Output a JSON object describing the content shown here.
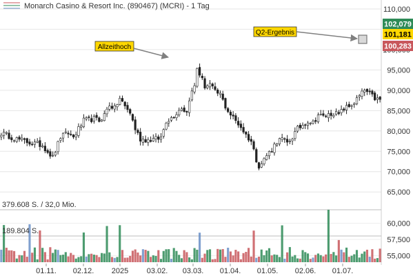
{
  "header": {
    "title": "Monarch Casino & Resort Inc. (890467) (MCRI) - 1 Tag"
  },
  "colors": {
    "up": "#2e8b57",
    "down": "#c8575c",
    "neutral": "#6a8fc7",
    "badge_high": "#2e8b57",
    "badge_mid": "#ffd700",
    "badge_low": "#c8575c",
    "annotation_bg": "#ffd700",
    "arrow": "#808080"
  },
  "chart_data": [
    {
      "type": "candlestick",
      "title": "Monarch Casino & Resort Inc. (890467) (MCRI) - 1 Tag",
      "ylim": [
        63000,
        110500
      ],
      "y_ticks": [
        65000,
        70000,
        75000,
        80000,
        85000,
        90000,
        95000,
        100000,
        105000,
        110000
      ],
      "y_tick_labels": [
        "65,000",
        "70,000",
        "75,000",
        "80,000",
        "85,000",
        "90,000",
        "95,000",
        "100,000",
        "105,000",
        "110,000"
      ],
      "x_tick_labels": [
        "01.11.",
        "02.12.",
        "2025",
        "03.02.",
        "03.03.",
        "01.04.",
        "01.05.",
        "02.06.",
        "01.07."
      ],
      "price_badges": [
        {
          "label": "102,079",
          "value": 102079
        },
        {
          "label": "101,181",
          "value": 101181
        },
        {
          "label": "100,283",
          "value": 100283
        }
      ],
      "annotations": [
        {
          "label": "Allzeithoch",
          "target": 95000
        },
        {
          "label": "Q2-Ergebnis",
          "target": 101181
        }
      ],
      "path": [
        [
          0,
          79500
        ],
        [
          6,
          78000
        ],
        [
          12,
          77000
        ],
        [
          16,
          76500
        ],
        [
          18,
          75000
        ],
        [
          20,
          73500
        ],
        [
          23,
          78500
        ],
        [
          26,
          79500
        ],
        [
          28,
          78500
        ],
        [
          32,
          82500
        ],
        [
          36,
          83000
        ],
        [
          38,
          82500
        ],
        [
          40,
          84000
        ],
        [
          42,
          86500
        ],
        [
          44,
          85500
        ],
        [
          46,
          88000
        ],
        [
          48,
          86000
        ],
        [
          50,
          84500
        ],
        [
          52,
          80500
        ],
        [
          54,
          78000
        ],
        [
          57,
          77800
        ],
        [
          60,
          78000
        ],
        [
          62,
          78300
        ],
        [
          64,
          82500
        ],
        [
          66,
          83200
        ],
        [
          68,
          84500
        ],
        [
          70,
          85800
        ],
        [
          72,
          84500
        ],
        [
          73,
          88000
        ],
        [
          74,
          89500
        ],
        [
          75,
          91000
        ],
        [
          76,
          95500
        ],
        [
          77,
          94000
        ],
        [
          79,
          91000
        ],
        [
          81,
          91500
        ],
        [
          83,
          89500
        ],
        [
          85,
          89000
        ],
        [
          87,
          86000
        ],
        [
          89,
          84000
        ],
        [
          91,
          82500
        ],
        [
          93,
          81000
        ],
        [
          95,
          79000
        ],
        [
          97,
          77500
        ],
        [
          99,
          73000
        ],
        [
          100,
          71500
        ],
        [
          101,
          72000
        ],
        [
          103,
          74000
        ],
        [
          105,
          75500
        ],
        [
          107,
          77500
        ],
        [
          109,
          78000
        ],
        [
          111,
          77000
        ],
        [
          113,
          78500
        ],
        [
          115,
          80500
        ],
        [
          117,
          81500
        ],
        [
          119,
          82500
        ],
        [
          121,
          82000
        ],
        [
          123,
          84000
        ],
        [
          125,
          83500
        ],
        [
          127,
          84000
        ],
        [
          129,
          84500
        ],
        [
          131,
          84000
        ],
        [
          133,
          85500
        ],
        [
          135,
          86000
        ],
        [
          137,
          87000
        ],
        [
          139,
          88500
        ],
        [
          141,
          90000
        ],
        [
          143,
          89000
        ],
        [
          145,
          88000
        ],
        [
          147,
          87500
        ]
      ],
      "volume_axis": {
        "ylim": [
          54000,
          62500
        ],
        "ticks": [
          55000,
          57500,
          60000
        ],
        "tick_labels": [
          "55,000",
          "57,500",
          "60,000"
        ]
      },
      "volume_lines": [
        {
          "label": "379.608 S. / 32,0 Mio.",
          "value": 379608
        },
        {
          "label": "189.804 S.",
          "value": 189804
        }
      ],
      "volume_max": 379608
    }
  ]
}
